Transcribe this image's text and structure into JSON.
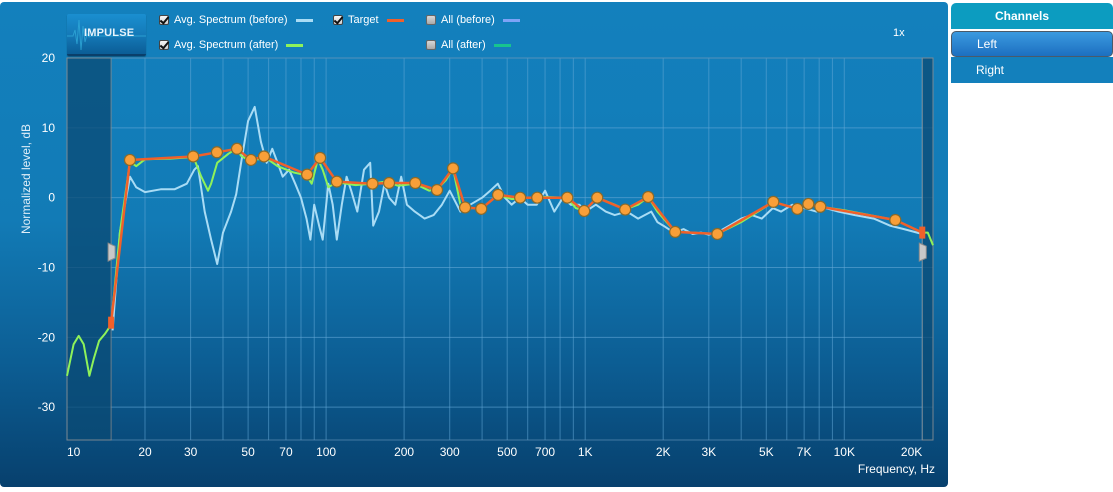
{
  "toolbar": {
    "impulse_button": "IMPULSE",
    "zoom_level": "1x"
  },
  "legend": [
    {
      "label": "Avg. Spectrum (before)",
      "checked": true,
      "color": "#a9dcf5"
    },
    {
      "label": "Avg. Spectrum (after)",
      "checked": true,
      "color": "#8ef25a"
    },
    {
      "label": "Target",
      "checked": true,
      "color": "#f0602a"
    },
    {
      "label": "All (before)",
      "checked": false,
      "color": "#7ea3f7"
    },
    {
      "label": "All (after)",
      "checked": false,
      "color": "#17c48e"
    }
  ],
  "channels": {
    "header": "Channels",
    "items": [
      {
        "label": "Left",
        "selected": true
      },
      {
        "label": "Right",
        "selected": false
      }
    ]
  },
  "colors": {
    "target_point_fill": "#f99f38",
    "target_point_stroke": "#8a6a2a",
    "excluded_region": "#0a4a74",
    "grid": "#62a7d6"
  },
  "chart_data": {
    "type": "line",
    "title": "",
    "xlabel": "Frequency, Hz",
    "ylabel": "Normalized level, dB",
    "xscale": "log",
    "xlim": [
      10,
      22000
    ],
    "ylim": [
      -34.7,
      20
    ],
    "grid": true,
    "x_ticks": [
      10,
      20,
      30,
      50,
      70,
      100,
      200,
      300,
      500,
      700,
      1000,
      2000,
      3000,
      5000,
      7000,
      10000,
      20000
    ],
    "x_tick_labels": [
      "10",
      "20",
      "30",
      "50",
      "70",
      "100",
      "200",
      "300",
      "500",
      "700",
      "1K",
      "2K",
      "3K",
      "5K",
      "7K",
      "10K",
      "20K"
    ],
    "y_ticks": [
      20,
      10,
      0,
      -10,
      -20,
      -30
    ],
    "y_tick_labels": [
      "20",
      "10",
      "0",
      "-10",
      "-20",
      "-30"
    ],
    "excluded_ranges": [
      [
        10,
        14.8
      ],
      [
        20000,
        22000
      ]
    ],
    "range_markers": [
      {
        "freq": 14.8,
        "level": -17.9
      },
      {
        "freq": 20000,
        "level": -5.0
      }
    ],
    "series": [
      {
        "name": "Avg. Spectrum (before)",
        "color": "#a9dcf5",
        "points": [
          [
            15,
            -19
          ],
          [
            16,
            -5
          ],
          [
            17.5,
            3
          ],
          [
            18.5,
            1.5
          ],
          [
            20,
            0.8
          ],
          [
            23,
            1.2
          ],
          [
            26,
            1.2
          ],
          [
            29,
            2
          ],
          [
            31,
            4
          ],
          [
            32,
            4.5
          ],
          [
            34,
            -2
          ],
          [
            36,
            -6
          ],
          [
            38,
            -9.5
          ],
          [
            40,
            -5
          ],
          [
            43,
            -2
          ],
          [
            45,
            0.5
          ],
          [
            47,
            5
          ],
          [
            50,
            11
          ],
          [
            53,
            13
          ],
          [
            56,
            8
          ],
          [
            59,
            5
          ],
          [
            62,
            7
          ],
          [
            65,
            5
          ],
          [
            68,
            3
          ],
          [
            72,
            4
          ],
          [
            76,
            2
          ],
          [
            80,
            0
          ],
          [
            84,
            -3
          ],
          [
            87,
            -6
          ],
          [
            90,
            -1
          ],
          [
            94,
            -4
          ],
          [
            97,
            -6
          ],
          [
            102,
            2
          ],
          [
            106,
            -1
          ],
          [
            110,
            -6
          ],
          [
            115,
            -1
          ],
          [
            120,
            3
          ],
          [
            125,
            1
          ],
          [
            132,
            -2
          ],
          [
            140,
            4
          ],
          [
            148,
            5
          ],
          [
            152,
            -4
          ],
          [
            160,
            -2
          ],
          [
            168,
            2
          ],
          [
            175,
            0
          ],
          [
            185,
            -1
          ],
          [
            195,
            3
          ],
          [
            205,
            -1
          ],
          [
            220,
            -2
          ],
          [
            240,
            -3
          ],
          [
            260,
            -2.5
          ],
          [
            280,
            -1
          ],
          [
            300,
            1
          ],
          [
            330,
            -2
          ],
          [
            360,
            -1
          ],
          [
            400,
            0
          ],
          [
            430,
            1
          ],
          [
            460,
            2
          ],
          [
            490,
            0
          ],
          [
            520,
            -1
          ],
          [
            560,
            0
          ],
          [
            600,
            -1
          ],
          [
            650,
            -1
          ],
          [
            700,
            1
          ],
          [
            760,
            -2
          ],
          [
            820,
            0
          ],
          [
            880,
            -1
          ],
          [
            950,
            -1
          ],
          [
            1000,
            -2
          ],
          [
            1100,
            -1
          ],
          [
            1200,
            -2
          ],
          [
            1300,
            -2.5
          ],
          [
            1450,
            -2
          ],
          [
            1600,
            -3
          ],
          [
            1800,
            -2
          ],
          [
            1900,
            -3.5
          ],
          [
            2000,
            -4
          ],
          [
            2200,
            -5
          ],
          [
            2400,
            -4.5
          ],
          [
            2600,
            -5.2
          ],
          [
            2800,
            -5
          ],
          [
            3000,
            -5.3
          ],
          [
            3300,
            -4.8
          ],
          [
            3600,
            -4
          ],
          [
            4000,
            -3
          ],
          [
            4400,
            -2.5
          ],
          [
            4800,
            -3
          ],
          [
            5300,
            -1.5
          ],
          [
            5700,
            -2
          ],
          [
            6300,
            -1
          ],
          [
            7000,
            -1.5
          ],
          [
            7800,
            -2
          ],
          [
            8500,
            -1.5
          ],
          [
            9500,
            -2
          ],
          [
            11000,
            -2.5
          ],
          [
            13000,
            -3
          ],
          [
            15000,
            -4
          ],
          [
            17000,
            -4.5
          ],
          [
            20000,
            -5.2
          ]
        ]
      },
      {
        "name": "Avg. Spectrum (after)",
        "color": "#8ef25a",
        "points": [
          [
            10,
            -25.5
          ],
          [
            10.6,
            -21
          ],
          [
            11.1,
            -19.8
          ],
          [
            11.6,
            -21
          ],
          [
            12.2,
            -25.5
          ],
          [
            12.7,
            -23
          ],
          [
            13.3,
            -20.5
          ],
          [
            14,
            -19.5
          ],
          [
            14.8,
            -18.2
          ],
          [
            16,
            -5
          ],
          [
            17.5,
            5.2
          ],
          [
            18.5,
            4.5
          ],
          [
            20,
            5.5
          ],
          [
            25,
            5.6
          ],
          [
            30,
            5.8
          ],
          [
            31,
            5.5
          ],
          [
            33,
            3
          ],
          [
            35,
            1
          ],
          [
            36,
            2
          ],
          [
            38,
            5
          ],
          [
            42,
            6.3
          ],
          [
            45,
            7
          ],
          [
            47,
            6
          ],
          [
            50,
            5.4
          ],
          [
            55,
            5.5
          ],
          [
            58,
            5.8
          ],
          [
            65,
            4.5
          ],
          [
            75,
            3.6
          ],
          [
            84,
            3.2
          ],
          [
            88,
            2
          ],
          [
            93,
            5.5
          ],
          [
            97,
            4
          ],
          [
            102,
            1.5
          ],
          [
            110,
            2.2
          ],
          [
            130,
            1.8
          ],
          [
            150,
            2
          ],
          [
            170,
            2.3
          ],
          [
            190,
            1.7
          ],
          [
            220,
            2
          ],
          [
            250,
            1
          ],
          [
            268,
            1.2
          ],
          [
            290,
            2.5
          ],
          [
            309,
            4.2
          ],
          [
            330,
            -1
          ],
          [
            360,
            -1.5
          ],
          [
            400,
            -1.5
          ],
          [
            430,
            -0.5
          ],
          [
            461,
            0.4
          ],
          [
            520,
            -0.2
          ],
          [
            600,
            0
          ],
          [
            700,
            0.1
          ],
          [
            853,
            0
          ],
          [
            920,
            -1.5
          ],
          [
            991,
            -1.9
          ],
          [
            1050,
            -1
          ],
          [
            1113,
            0
          ],
          [
            1300,
            -1
          ],
          [
            1427,
            -1.7
          ],
          [
            1600,
            -1
          ],
          [
            1750,
            0.1
          ],
          [
            1900,
            -2
          ],
          [
            2225,
            -4.9
          ],
          [
            2600,
            -5
          ],
          [
            3236,
            -5.2
          ],
          [
            4000,
            -3.5
          ],
          [
            5322,
            -0.6
          ],
          [
            6590,
            -1.6
          ],
          [
            7268,
            -0.9
          ],
          [
            8080,
            -1.3
          ],
          [
            10000,
            -1.8
          ],
          [
            15740,
            -3.2
          ],
          [
            20000,
            -5
          ],
          [
            21000,
            -5
          ],
          [
            22000,
            -6.8
          ]
        ]
      },
      {
        "name": "Target",
        "color": "#f0602a",
        "points": [
          [
            14.8,
            -17.9
          ],
          [
            17.5,
            5.4
          ],
          [
            30.7,
            5.9
          ],
          [
            37.9,
            6.5
          ],
          [
            45.3,
            7.0
          ],
          [
            51.3,
            5.4
          ],
          [
            57.6,
            5.9
          ],
          [
            84.5,
            3.3
          ],
          [
            94.8,
            5.7
          ],
          [
            110,
            2.3
          ],
          [
            151,
            2.0
          ],
          [
            175,
            2.1
          ],
          [
            221,
            2.1
          ],
          [
            268,
            1.1
          ],
          [
            309,
            4.2
          ],
          [
            344,
            -1.4
          ],
          [
            397,
            -1.6
          ],
          [
            461,
            0.4
          ],
          [
            561,
            0.0
          ],
          [
            653,
            0.0
          ],
          [
            853,
            0.0
          ],
          [
            991,
            -1.9
          ],
          [
            1113,
            0.0
          ],
          [
            1427,
            -1.7
          ],
          [
            1750,
            0.1
          ],
          [
            2225,
            -4.9
          ],
          [
            3236,
            -5.2
          ],
          [
            5322,
            -0.6
          ],
          [
            6590,
            -1.6
          ],
          [
            7268,
            -0.9
          ],
          [
            8080,
            -1.3
          ],
          [
            15740,
            -3.2
          ],
          [
            20000,
            -5.0
          ]
        ],
        "control_points": [
          [
            17.5,
            5.4
          ],
          [
            30.7,
            5.9
          ],
          [
            37.9,
            6.5
          ],
          [
            45.3,
            7.0
          ],
          [
            51.3,
            5.4
          ],
          [
            57.6,
            5.9
          ],
          [
            84.5,
            3.3
          ],
          [
            94.8,
            5.7
          ],
          [
            110,
            2.3
          ],
          [
            151,
            2.0
          ],
          [
            175,
            2.1
          ],
          [
            221,
            2.1
          ],
          [
            268,
            1.1
          ],
          [
            309,
            4.2
          ],
          [
            344,
            -1.4
          ],
          [
            397,
            -1.6
          ],
          [
            461,
            0.4
          ],
          [
            561,
            0.0
          ],
          [
            653,
            0.0
          ],
          [
            853,
            0.0
          ],
          [
            991,
            -1.9
          ],
          [
            1113,
            0.0
          ],
          [
            1427,
            -1.7
          ],
          [
            1750,
            0.1
          ],
          [
            2225,
            -4.9
          ],
          [
            3236,
            -5.2
          ],
          [
            5322,
            -0.6
          ],
          [
            6590,
            -1.6
          ],
          [
            7268,
            -0.9
          ],
          [
            8080,
            -1.3
          ],
          [
            15740,
            -3.2
          ]
        ]
      }
    ]
  }
}
